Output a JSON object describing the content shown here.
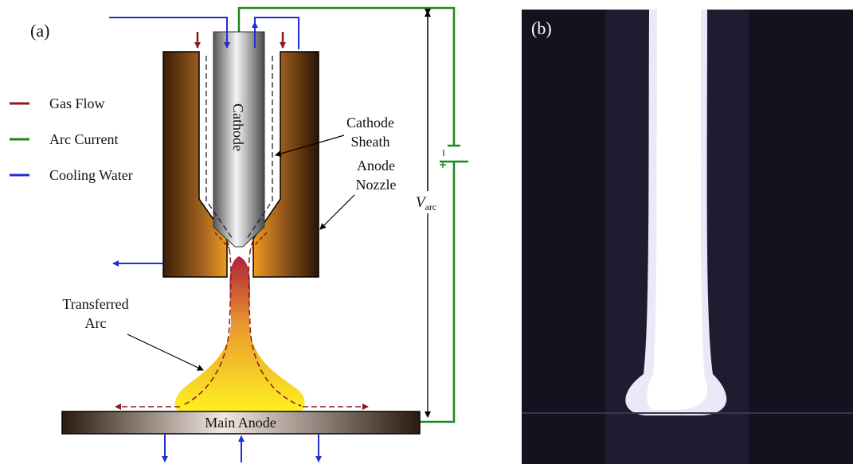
{
  "panel_a": {
    "label": "(a)",
    "legend": [
      {
        "label": "Gas Flow",
        "color": "#8b1a1a"
      },
      {
        "label": "Arc Current",
        "color": "#1a8a1a"
      },
      {
        "label": "Cooling Water",
        "color": "#1f2fd0"
      }
    ],
    "cathode": "Cathode",
    "cathode_sheath": [
      "Cathode",
      "Sheath"
    ],
    "anode_nozzle": [
      "Anode",
      "Nozzle"
    ],
    "voltage": {
      "symbol": "V",
      "subscript": "arc"
    },
    "transferred_arc": [
      "Transferred",
      "Arc"
    ],
    "main_anode": "Main Anode"
  },
  "panel_b": {
    "label": "(b)"
  }
}
